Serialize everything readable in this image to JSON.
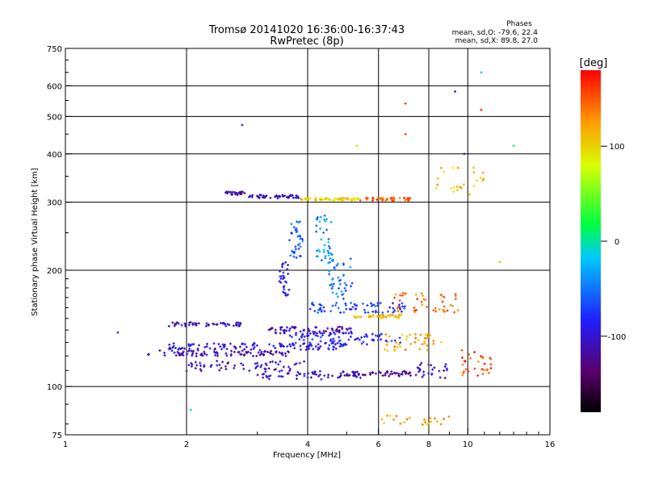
{
  "chart_data": {
    "type": "scatter",
    "title_line1": "Tromsø 20141020 16:36:00-16:37:43",
    "title_line2": "RwPretec (8p)",
    "stats": {
      "heading": "Phases",
      "line1": "mean, sd,O: -79.6, 22.4",
      "line2": "mean, sd,X:  89.8, 27.0"
    },
    "xlabel": "Frequency [MHz]",
    "ylabel": "Stationary phase Virtual Height [km]",
    "x_scale": "log",
    "y_scale": "log",
    "xlim": [
      1,
      16
    ],
    "ylim": [
      75,
      750
    ],
    "x_ticks": [
      {
        "value": 1,
        "label": "1"
      },
      {
        "value": 2,
        "label": "2"
      },
      {
        "value": 4,
        "label": "4"
      },
      {
        "value": 6,
        "label": "6"
      },
      {
        "value": 8,
        "label": "8"
      },
      {
        "value": 10,
        "label": "10"
      },
      {
        "value": 16,
        "label": "16"
      }
    ],
    "y_ticks": [
      {
        "value": 75,
        "label": "75"
      },
      {
        "value": 100,
        "label": "100"
      },
      {
        "value": 200,
        "label": "200"
      },
      {
        "value": 300,
        "label": "300"
      },
      {
        "value": 400,
        "label": "400"
      },
      {
        "value": 500,
        "label": "500"
      },
      {
        "value": 600,
        "label": "600"
      },
      {
        "value": 750,
        "label": "750"
      }
    ],
    "grid": true,
    "colorbar": {
      "label": "[deg]",
      "range": [
        -180,
        180
      ],
      "ticks": [
        {
          "value": 100,
          "label": "100"
        },
        {
          "value": 0,
          "label": "0"
        },
        {
          "value": -100,
          "label": "-100"
        }
      ]
    },
    "traces": [
      {
        "f_start": 1.6,
        "f_end": 3.6,
        "h": 122,
        "phase": -115,
        "count": 90,
        "spread": 0.018
      },
      {
        "f_start": 1.8,
        "f_end": 5.0,
        "h": 127,
        "phase": -95,
        "count": 110,
        "spread": 0.02
      },
      {
        "f_start": 1.8,
        "f_end": 2.8,
        "h": 145,
        "phase": -110,
        "count": 50,
        "spread": 0.012
      },
      {
        "f_start": 2.0,
        "f_end": 4.0,
        "h": 113,
        "phase": -105,
        "count": 60,
        "spread": 0.03
      },
      {
        "f_start": 3.0,
        "f_end": 5.5,
        "h": 107,
        "phase": -100,
        "count": 60,
        "spread": 0.025
      },
      {
        "f_start": 3.2,
        "f_end": 5.2,
        "h": 140,
        "phase": -110,
        "count": 70,
        "spread": 0.02
      },
      {
        "f_start": 3.6,
        "f_end": 6.8,
        "h": 133,
        "phase": -85,
        "count": 80,
        "spread": 0.035
      },
      {
        "f_start": 4.0,
        "f_end": 7.0,
        "h": 160,
        "phase": -70,
        "count": 70,
        "spread": 0.03
      },
      {
        "f_start": 5.2,
        "f_end": 7.0,
        "h": 152,
        "phase": 110,
        "count": 40,
        "spread": 0.01
      },
      {
        "f_start": 5.0,
        "f_end": 7.5,
        "h": 108,
        "phase": -120,
        "count": 50,
        "spread": 0.015
      },
      {
        "f_start": 6.2,
        "f_end": 8.6,
        "h": 130,
        "phase": 120,
        "count": 40,
        "spread": 0.05
      },
      {
        "f_start": 6.5,
        "f_end": 9.5,
        "h": 165,
        "phase": 140,
        "count": 45,
        "spread": 0.06
      },
      {
        "f_start": 2.5,
        "f_end": 2.8,
        "h": 316,
        "phase": -120,
        "count": 25,
        "spread": 0.01
      },
      {
        "f_start": 2.8,
        "f_end": 3.8,
        "h": 310,
        "phase": -105,
        "count": 50,
        "spread": 0.01
      },
      {
        "f_start": 3.8,
        "f_end": 5.4,
        "h": 305,
        "phase": 100,
        "count": 60,
        "spread": 0.008
      },
      {
        "f_start": 5.4,
        "f_end": 7.2,
        "h": 305,
        "phase": 150,
        "count": 40,
        "spread": 0.01
      },
      {
        "f_start": 3.4,
        "f_end": 3.6,
        "h": 190,
        "phase": -90,
        "count": 30,
        "spread": 0.1
      },
      {
        "f_start": 3.6,
        "f_end": 3.9,
        "h": 240,
        "phase": -60,
        "count": 35,
        "spread": 0.12
      },
      {
        "f_start": 4.2,
        "f_end": 4.6,
        "h": 240,
        "phase": -40,
        "count": 40,
        "spread": 0.15
      },
      {
        "f_start": 4.5,
        "f_end": 5.2,
        "h": 190,
        "phase": -50,
        "count": 40,
        "spread": 0.12
      },
      {
        "f_start": 7.5,
        "f_end": 9.0,
        "h": 110,
        "phase": -110,
        "count": 25,
        "spread": 0.05
      },
      {
        "f_start": 9.5,
        "f_end": 11.5,
        "h": 115,
        "phase": 150,
        "count": 30,
        "spread": 0.08
      },
      {
        "f_start": 8.0,
        "f_end": 11.0,
        "h": 340,
        "phase": 110,
        "count": 25,
        "spread": 0.08
      },
      {
        "f_start": 6.0,
        "f_end": 9.0,
        "h": 82,
        "phase": 120,
        "count": 25,
        "spread": 0.03
      }
    ],
    "isolated_points": [
      {
        "f": 1.35,
        "h": 138,
        "phase": -80
      },
      {
        "f": 2.05,
        "h": 87,
        "phase": -10
      },
      {
        "f": 2.75,
        "h": 475,
        "phase": -110
      },
      {
        "f": 7.0,
        "h": 540,
        "phase": 160
      },
      {
        "f": 7.0,
        "h": 450,
        "phase": 160
      },
      {
        "f": 9.3,
        "h": 580,
        "phase": -110
      },
      {
        "f": 10.8,
        "h": 650,
        "phase": -20
      },
      {
        "f": 10.8,
        "h": 520,
        "phase": 170
      },
      {
        "f": 13.0,
        "h": 420,
        "phase": 10
      },
      {
        "f": 12.0,
        "h": 210,
        "phase": 110
      },
      {
        "f": 9.8,
        "h": 400,
        "phase": -120
      },
      {
        "f": 5.3,
        "h": 420,
        "phase": 60
      }
    ]
  }
}
